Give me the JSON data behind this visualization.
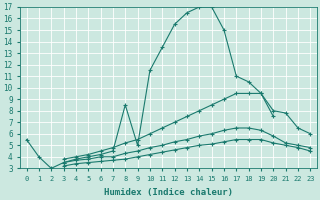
{
  "xlabel": "Humidex (Indice chaleur)",
  "ylabel": "",
  "background_color": "#cce8e0",
  "line_color": "#1a7a6e",
  "grid_color": "#ffffff",
  "xlim": [
    -0.5,
    23.5
  ],
  "ylim": [
    3,
    17
  ],
  "xticks": [
    0,
    1,
    2,
    3,
    4,
    5,
    6,
    7,
    8,
    9,
    10,
    11,
    12,
    13,
    14,
    15,
    16,
    17,
    18,
    19,
    20,
    21,
    22,
    23
  ],
  "yticks": [
    3,
    4,
    5,
    6,
    7,
    8,
    9,
    10,
    11,
    12,
    13,
    14,
    15,
    16,
    17
  ],
  "lines": [
    {
      "x": [
        0,
        1,
        2,
        3,
        4,
        5,
        6,
        7,
        8,
        9,
        10,
        11,
        12,
        13,
        14,
        15,
        16,
        17,
        18,
        19,
        20
      ],
      "y": [
        5.5,
        4.0,
        3.0,
        3.5,
        3.8,
        4.0,
        4.2,
        4.5,
        8.5,
        5.0,
        11.5,
        13.5,
        15.5,
        16.5,
        17.0,
        17.0,
        15.0,
        11.0,
        10.5,
        9.5,
        7.5
      ]
    },
    {
      "x": [
        3,
        4,
        5,
        6,
        7,
        8,
        9,
        10,
        11,
        12,
        13,
        14,
        15,
        16,
        17,
        18,
        19,
        20,
        21,
        22,
        23
      ],
      "y": [
        3.8,
        4.0,
        4.2,
        4.5,
        4.8,
        5.2,
        5.5,
        6.0,
        6.5,
        7.0,
        7.5,
        8.0,
        8.5,
        9.0,
        9.5,
        9.5,
        9.5,
        8.0,
        7.8,
        6.5,
        6.0
      ]
    },
    {
      "x": [
        3,
        4,
        5,
        6,
        7,
        8,
        9,
        10,
        11,
        12,
        13,
        14,
        15,
        16,
        17,
        18,
        19,
        20,
        21,
        22,
        23
      ],
      "y": [
        3.5,
        3.7,
        3.8,
        4.0,
        4.0,
        4.3,
        4.5,
        4.8,
        5.0,
        5.3,
        5.5,
        5.8,
        6.0,
        6.3,
        6.5,
        6.5,
        6.3,
        5.8,
        5.2,
        5.0,
        4.8
      ]
    },
    {
      "x": [
        3,
        4,
        5,
        6,
        7,
        8,
        9,
        10,
        11,
        12,
        13,
        14,
        15,
        16,
        17,
        18,
        19,
        20,
        21,
        22,
        23
      ],
      "y": [
        3.2,
        3.4,
        3.5,
        3.6,
        3.7,
        3.8,
        4.0,
        4.2,
        4.4,
        4.6,
        4.8,
        5.0,
        5.1,
        5.3,
        5.5,
        5.5,
        5.5,
        5.2,
        5.0,
        4.8,
        4.5
      ]
    }
  ]
}
